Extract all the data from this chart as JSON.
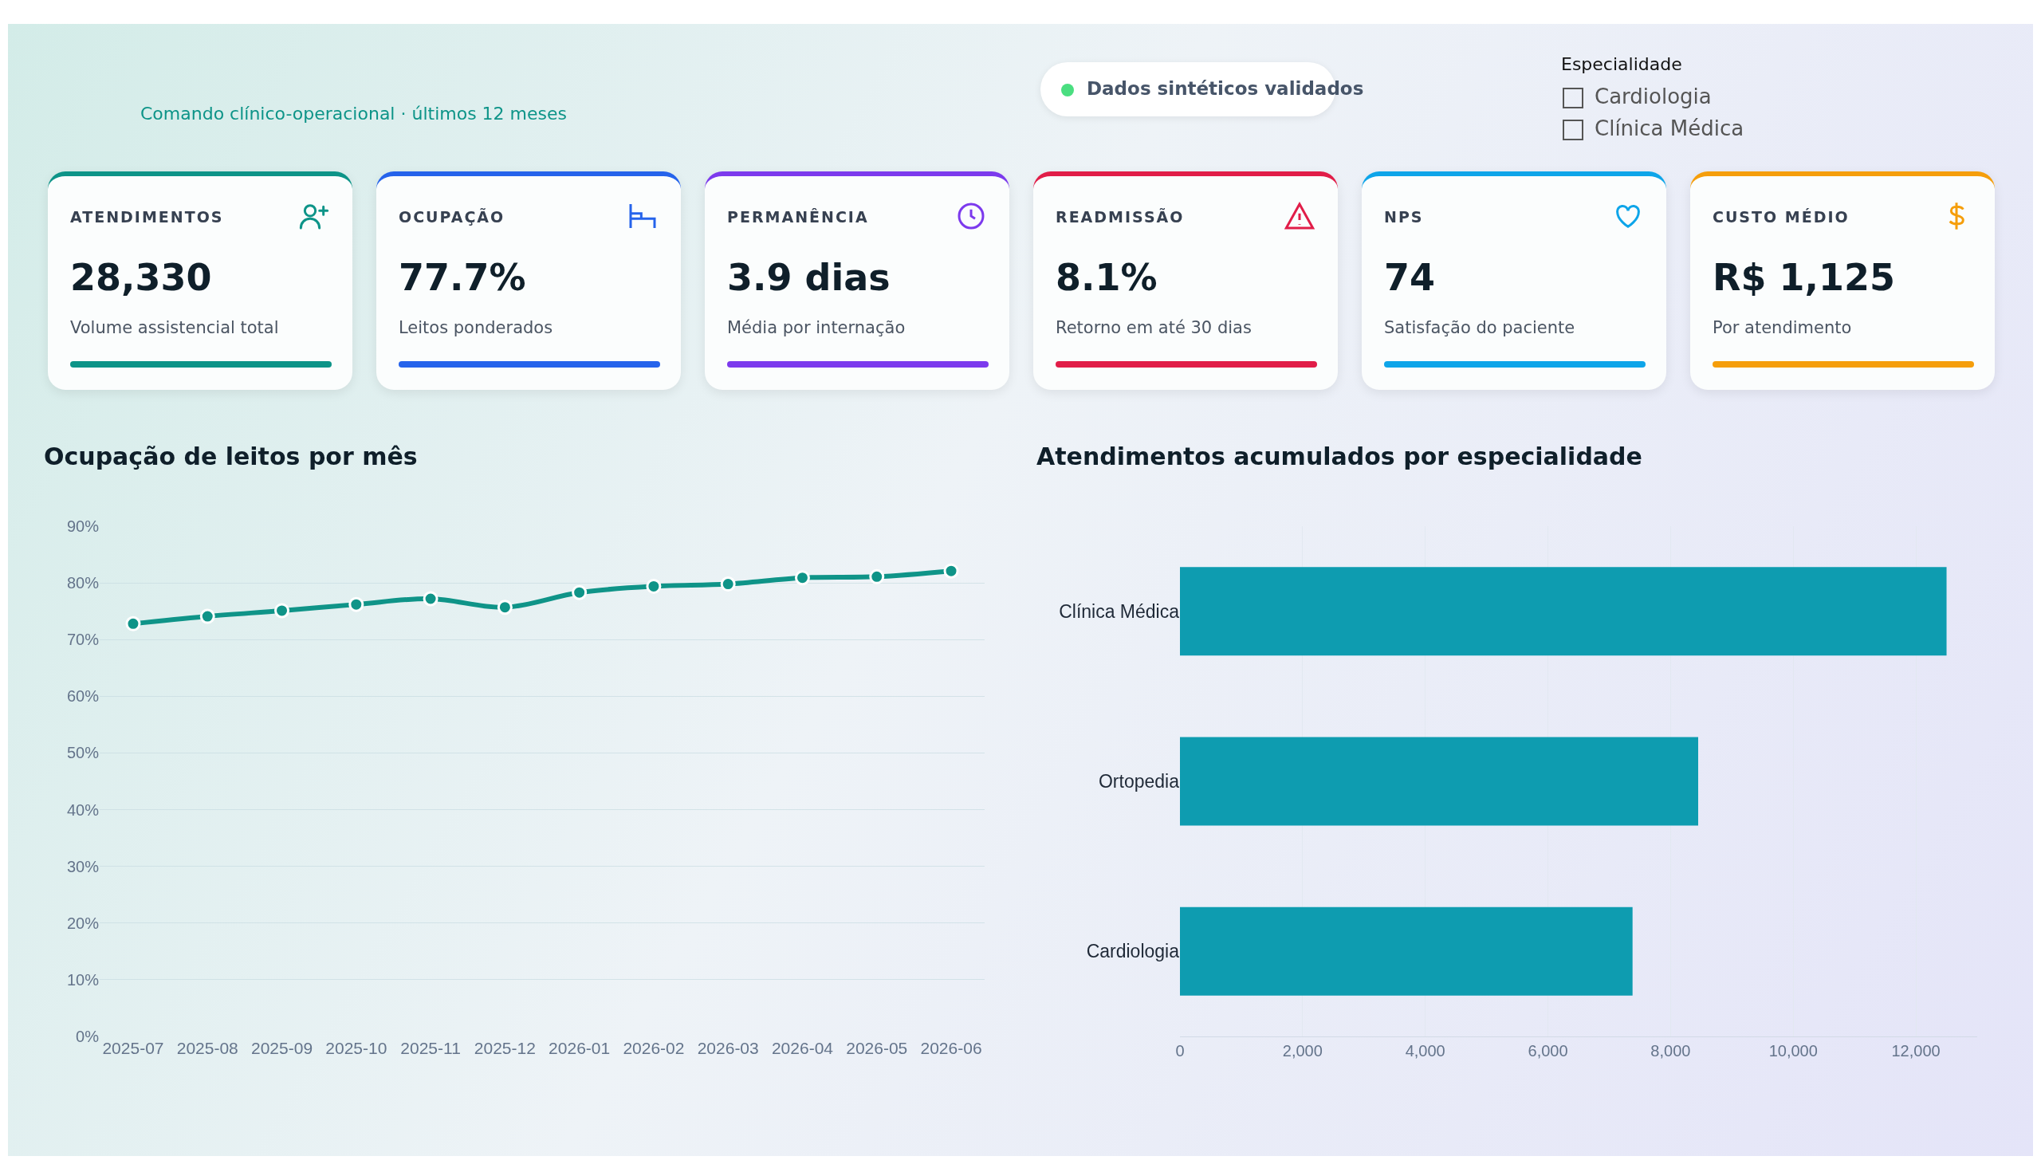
{
  "chart_data": [
    {
      "type": "other",
      "subtitle": "Comando clínico-operacional · últimos 12 meses",
      "annotations": [
        "Dados sintéticos validados",
        "Especialidade",
        "Cardiologia",
        "Clínica Médica"
      ]
    },
    {
      "type": "other",
      "title": "ATENDIMENTOS",
      "annotations": [
        "28,330",
        "Volume assistencial total"
      ],
      "color": "#0d9488"
    },
    {
      "type": "other",
      "title": "OCUPAÇÃO",
      "annotations": [
        "77.7%",
        "Leitos ponderados"
      ],
      "color": "#2563eb"
    },
    {
      "type": "other",
      "title": "PERMANÊNCIA",
      "annotations": [
        "3.9 dias",
        "Média por internação"
      ],
      "color": "#7c3aed"
    },
    {
      "type": "other",
      "title": "READMISSÃO",
      "annotations": [
        "8.1%",
        "Retorno em até 30 dias"
      ],
      "color": "#e11d48"
    },
    {
      "type": "other",
      "title": "NPS",
      "annotations": [
        "74",
        "Satisfação do paciente"
      ],
      "color": "#0ea5e9"
    },
    {
      "type": "other",
      "title": "CUSTO MÉDIO",
      "annotations": [
        "R$ 1,125",
        "Por atendimento"
      ],
      "color": "#f59e0b"
    },
    {
      "type": "line",
      "title": "Ocupação de leitos por mês",
      "categories": [
        "2025-07",
        "2025-08",
        "2025-09",
        "2025-10",
        "2025-11",
        "2025-12",
        "2026-01",
        "2026-02",
        "2026-03",
        "2026-04",
        "2026-05",
        "2026-06"
      ],
      "values": [
        72.8,
        74.1,
        75.1,
        76.2,
        77.2,
        75.7,
        78.3,
        79.4,
        79.8,
        80.9,
        81.1,
        82.1
      ],
      "color": "#0f9488",
      "ylim": [
        0,
        90
      ],
      "yticks": [
        {
          "value": 0,
          "label": "0%"
        },
        {
          "value": 10,
          "label": "10%"
        },
        {
          "value": 20,
          "label": "20%"
        },
        {
          "value": 30,
          "label": "30%"
        },
        {
          "value": 40,
          "label": "40%"
        },
        {
          "value": 50,
          "label": "50%"
        },
        {
          "value": 60,
          "label": "60%"
        },
        {
          "value": 70,
          "label": "70%"
        },
        {
          "value": 80,
          "label": "80%"
        },
        {
          "value": 90,
          "label": "90%"
        }
      ],
      "grid": "y",
      "marker": "circle",
      "line_style": "solid",
      "legend": false
    },
    {
      "type": "bar",
      "orientation": "horizontal",
      "title": "Atendimentos acumulados por especialidade",
      "categories": [
        "Clínica Médica",
        "Ortopedia",
        "Cardiologia"
      ],
      "values": [
        12500,
        8450,
        7380
      ],
      "color": "#0e9cb0",
      "xlim": [
        0,
        13000
      ],
      "xticks": [
        0,
        {
          "value": 2000,
          "label": "2,000"
        },
        {
          "value": 4000,
          "label": "4,000"
        },
        {
          "value": 6000,
          "label": "6,000"
        },
        {
          "value": 8000,
          "label": "8,000"
        },
        {
          "value": 10000,
          "label": "10,000"
        },
        {
          "value": 12000,
          "label": "12,000"
        }
      ],
      "grid": "x",
      "legend": false
    }
  ]
}
